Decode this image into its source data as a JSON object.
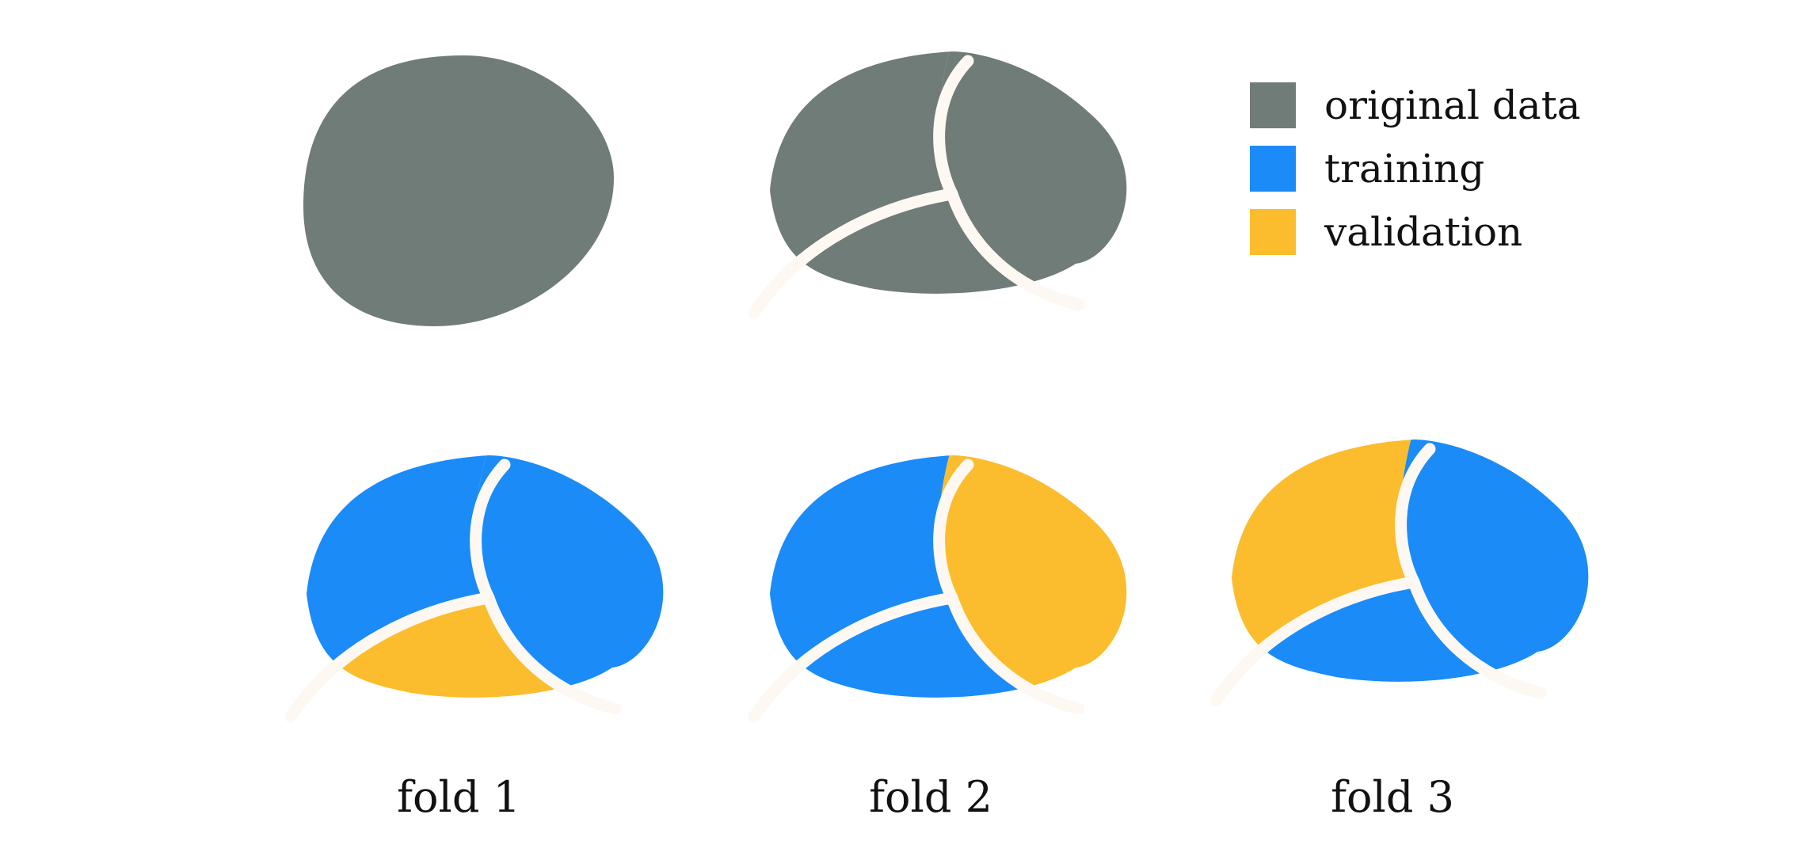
{
  "colors": {
    "original": "#6f7c78",
    "training": "#1b8bf8",
    "validation": "#fbbd2e",
    "separator": "#fdf8f2"
  },
  "legend": [
    {
      "key": "original",
      "label": "original data"
    },
    {
      "key": "training",
      "label": "training"
    },
    {
      "key": "validation",
      "label": "validation"
    }
  ],
  "folds": [
    {
      "label": "fold 1",
      "regions": {
        "a": "training",
        "b": "training",
        "c": "validation"
      }
    },
    {
      "label": "fold 2",
      "regions": {
        "a": "training",
        "b": "validation",
        "c": "training"
      }
    },
    {
      "label": "fold 3",
      "regions": {
        "a": "validation",
        "b": "training",
        "c": "training"
      }
    }
  ]
}
